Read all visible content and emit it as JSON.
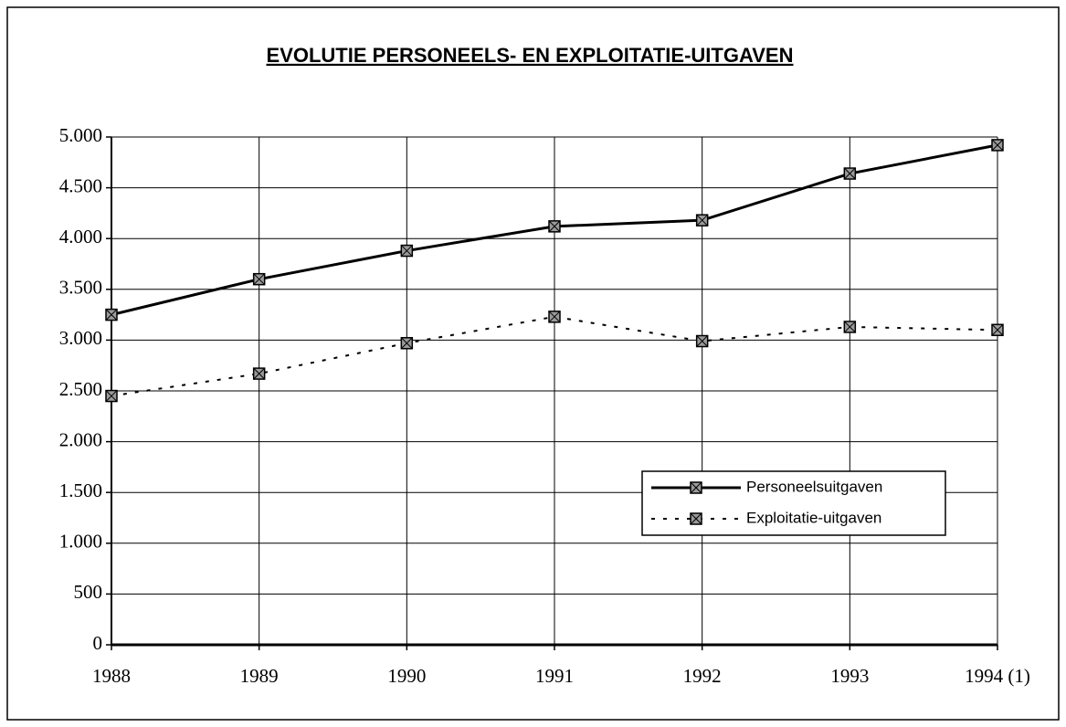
{
  "chart_data": {
    "type": "line",
    "title": "EVOLUTIE PERSONEELS- EN EXPLOITATIE-UITGAVEN",
    "categories": [
      "1988",
      "1989",
      "1990",
      "1991",
      "1992",
      "1993",
      "1994 (1)"
    ],
    "series": [
      {
        "name": "Personeelsuitgaven",
        "color": "#000000",
        "line_style": "solid",
        "values": [
          3250,
          3600,
          3880,
          4120,
          4180,
          4640,
          4920
        ]
      },
      {
        "name": "Exploitatie-uitgaven",
        "color": "#000000",
        "line_style": "dotted",
        "values": [
          2450,
          2670,
          2970,
          3230,
          2990,
          3130,
          3100
        ]
      }
    ],
    "ylim": [
      0,
      5000
    ],
    "yticks": [
      0,
      500,
      {
        "value": 1000,
        "label": "1.000"
      },
      {
        "value": 1500,
        "label": "1.500"
      },
      {
        "value": 2000,
        "label": "2.000"
      },
      {
        "value": 2500,
        "label": "2.500"
      },
      {
        "value": 3000,
        "label": "3.000"
      },
      {
        "value": 3500,
        "label": "3.500"
      },
      {
        "value": 4000,
        "label": "4.000"
      },
      {
        "value": 4500,
        "label": "4.500"
      },
      {
        "value": 5000,
        "label": "5.000"
      }
    ],
    "grid": true,
    "legend": "lower right"
  }
}
